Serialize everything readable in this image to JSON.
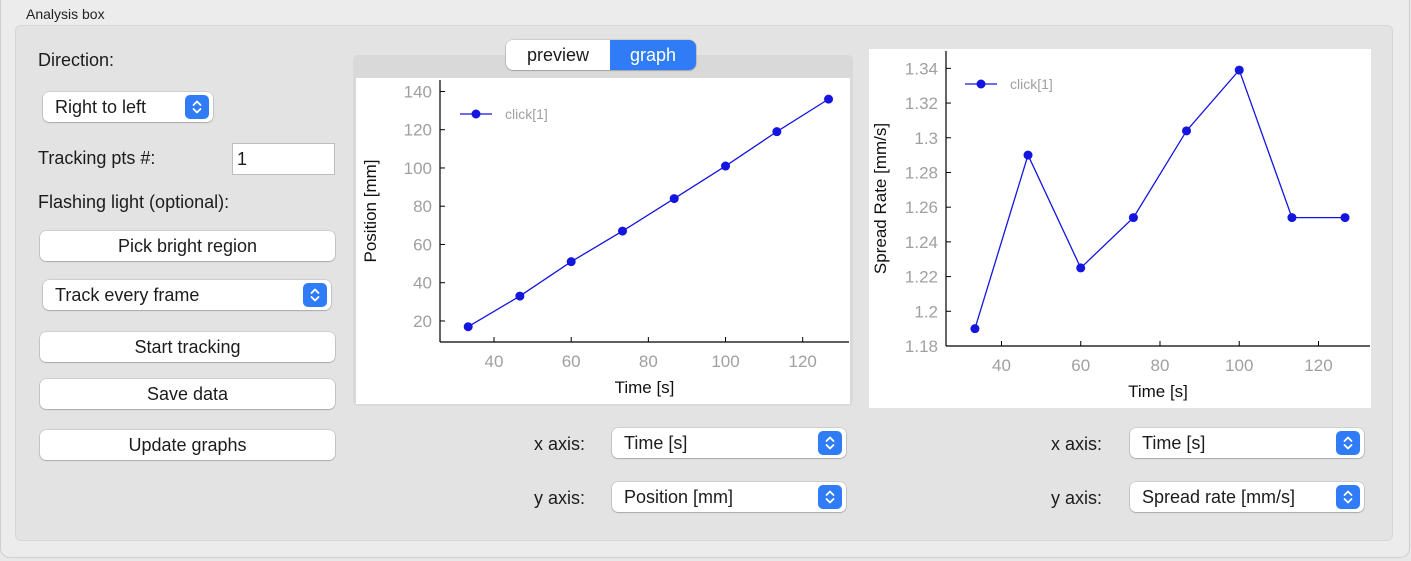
{
  "group_title": "Analysis box",
  "left": {
    "direction_label": "Direction:",
    "direction_value": "Right to left",
    "tracking_pts_label": "Tracking pts #:",
    "tracking_pts_value": "1",
    "flashing_label": "Flashing light (optional):",
    "pick_bright_label": "Pick bright region",
    "track_mode_value": "Track every frame",
    "start_tracking_label": "Start tracking",
    "save_data_label": "Save data",
    "update_graphs_label": "Update graphs"
  },
  "tabs": [
    {
      "label": "preview",
      "selected": false
    },
    {
      "label": "graph",
      "selected": true
    }
  ],
  "graph1_controls": {
    "x_axis_label": "x axis:",
    "x_axis_value": "Time [s]",
    "y_axis_label": "y axis:",
    "y_axis_value": "Position [mm]"
  },
  "graph2_controls": {
    "x_axis_label": "x axis:",
    "x_axis_value": "Time [s]",
    "y_axis_label": "y axis:",
    "y_axis_value": "Spread rate [mm/s]"
  },
  "colors": {
    "accent": "#2f7cf6",
    "series": "#1515e0",
    "tick_text": "#a0a0a0"
  },
  "icons": {
    "popup_chevron": "chevron-up-down-icon"
  },
  "chart_data": [
    {
      "type": "line",
      "xlabel": "Time [s]",
      "ylabel": "Position [mm]",
      "xlim": [
        26,
        132
      ],
      "ylim": [
        9,
        146
      ],
      "xticks": [
        40,
        60,
        80,
        100,
        120
      ],
      "yticks": [
        20,
        40,
        60,
        80,
        100,
        120,
        140
      ],
      "grid": false,
      "legend_position": "top-left",
      "series": [
        {
          "name": "click[1]",
          "x": [
            33.3,
            46.7,
            60,
            73.3,
            86.7,
            100,
            113.3,
            126.7
          ],
          "y": [
            17,
            33,
            51,
            67,
            84,
            101,
            119,
            136
          ]
        }
      ]
    },
    {
      "type": "line",
      "xlabel": "Time [s]",
      "ylabel": "Spread Rate [mm/s]",
      "xlim": [
        26,
        133
      ],
      "ylim": [
        1.18,
        1.35
      ],
      "xticks": [
        40,
        60,
        80,
        100,
        120
      ],
      "yticks": [
        1.18,
        1.2,
        1.22,
        1.24,
        1.26,
        1.28,
        1.3,
        1.32,
        1.34
      ],
      "ytick_labels": [
        "1.18",
        "1.2",
        "1.22",
        "1.24",
        "1.26",
        "1.28",
        "1.3",
        "1.32",
        "1.34"
      ],
      "grid": false,
      "legend_position": "top-left",
      "series": [
        {
          "name": "click[1]",
          "x": [
            33.3,
            46.7,
            60,
            73.3,
            86.7,
            100,
            113.3,
            126.7
          ],
          "y": [
            1.19,
            1.29,
            1.225,
            1.254,
            1.304,
            1.339,
            1.254,
            1.254
          ]
        }
      ]
    }
  ]
}
